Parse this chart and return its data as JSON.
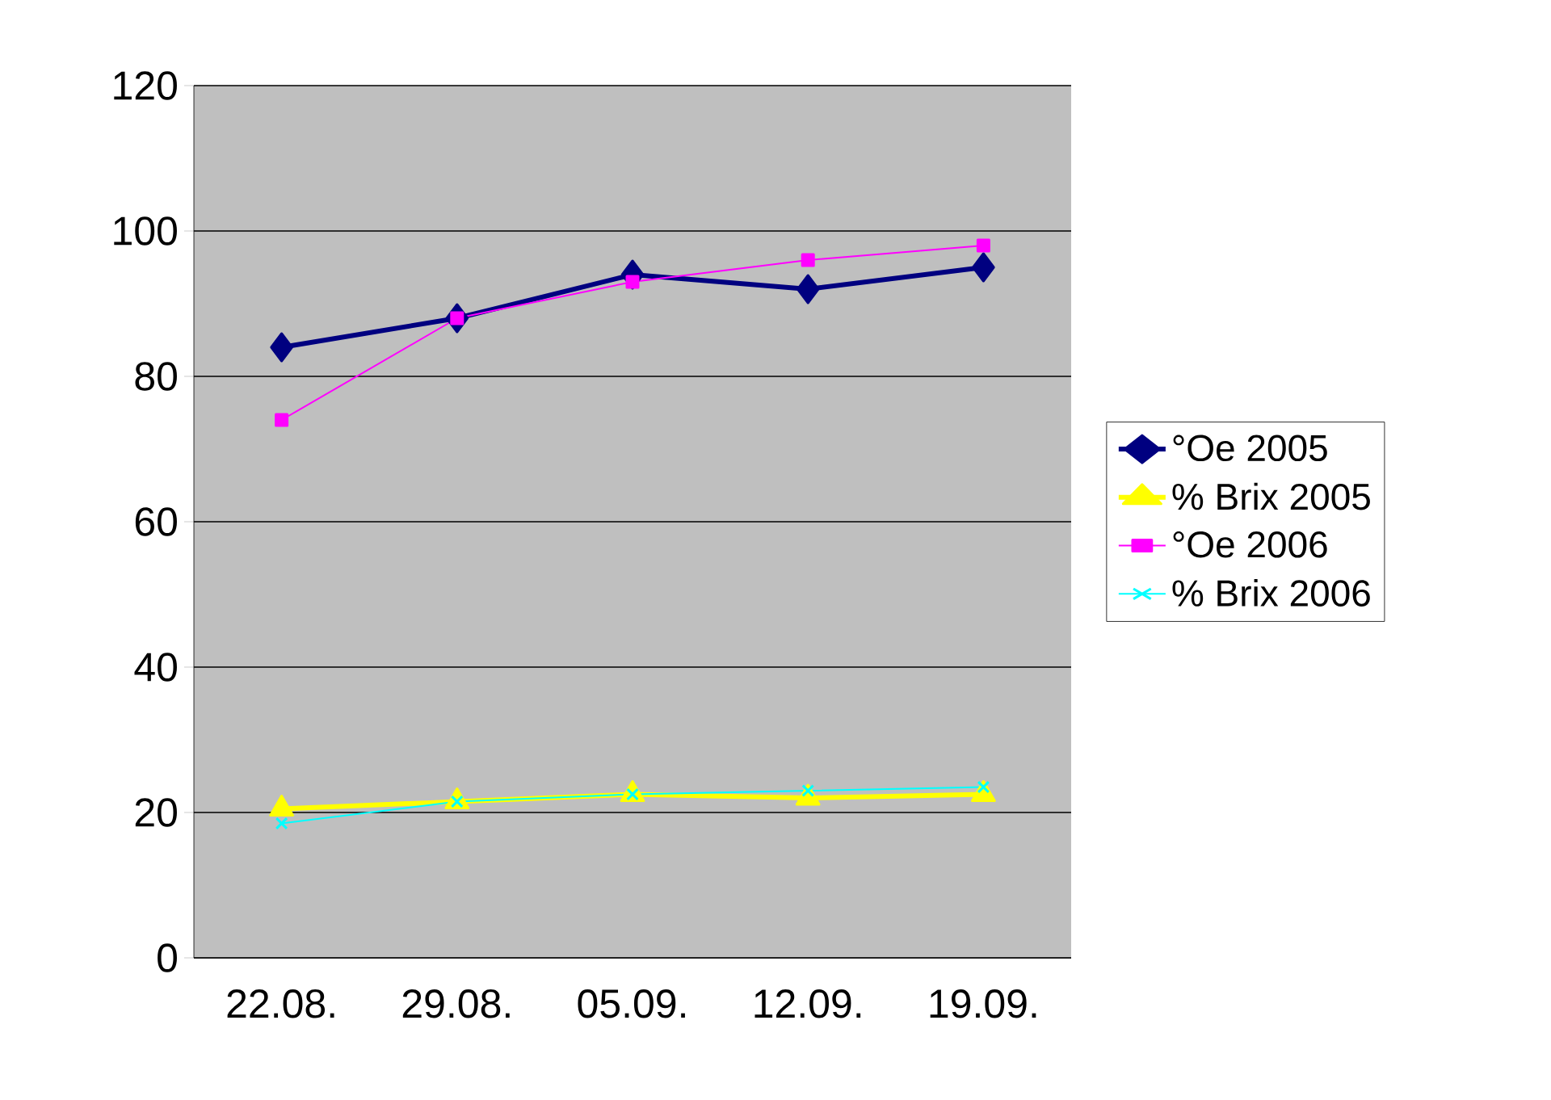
{
  "chart_data": {
    "type": "line",
    "categories": [
      "22.08.",
      "29.08.",
      "05.09.",
      "12.09.",
      "19.09."
    ],
    "series": [
      {
        "name": "°Oe 2005",
        "color": "#000080",
        "marker": "diamond",
        "values": [
          84,
          88,
          94,
          92,
          95
        ]
      },
      {
        "name": "% Brix 2005",
        "color": "#ffff00",
        "marker": "triangle",
        "values": [
          20.5,
          21.5,
          22.5,
          22,
          22.5
        ]
      },
      {
        "name": "°Oe 2006",
        "color": "#ff00ff",
        "marker": "square",
        "values": [
          74,
          88,
          93,
          96,
          98
        ]
      },
      {
        "name": "% Brix 2006",
        "color": "#00ffff",
        "marker": "cross",
        "values": [
          18.5,
          21.5,
          22.5,
          23,
          23.5
        ]
      }
    ],
    "ylim": [
      0,
      120
    ],
    "yticks": [
      0,
      20,
      40,
      60,
      80,
      100,
      120
    ],
    "grid": "y",
    "legend": "right"
  }
}
